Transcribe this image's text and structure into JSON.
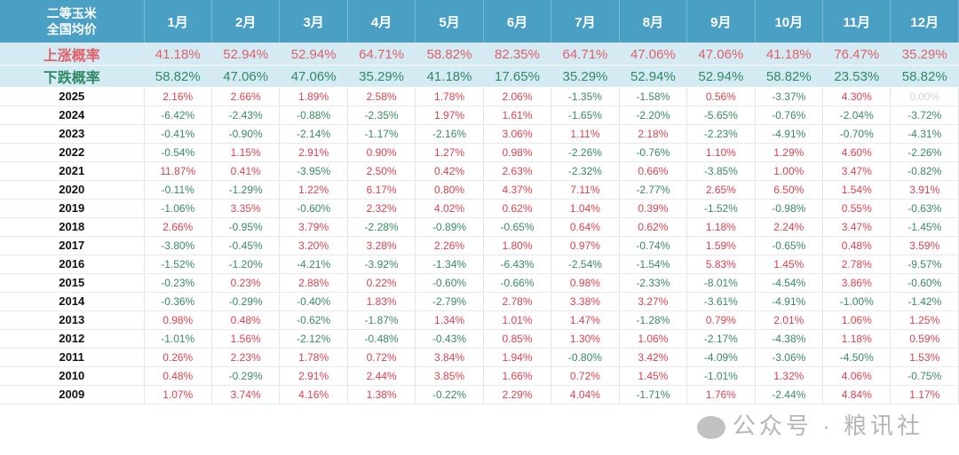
{
  "header": {
    "corner_line1": "二等玉米",
    "corner_line2": "全国均价",
    "months": [
      "1月",
      "2月",
      "3月",
      "4月",
      "5月",
      "6月",
      "7月",
      "8月",
      "9月",
      "10月",
      "11月",
      "12月"
    ]
  },
  "colors": {
    "header_bg": "#4a9fc4",
    "prob_bg": "#d4ebf4",
    "up": "#d9434f",
    "down": "#3a8a62"
  },
  "up_prob": {
    "label": "上涨概率",
    "values": [
      "41.18%",
      "52.94%",
      "52.94%",
      "64.71%",
      "58.82%",
      "82.35%",
      "64.71%",
      "47.06%",
      "47.06%",
      "41.18%",
      "76.47%",
      "35.29%"
    ]
  },
  "down_prob": {
    "label": "下跌概率",
    "values": [
      "58.82%",
      "47.06%",
      "47.06%",
      "35.29%",
      "41.18%",
      "17.65%",
      "35.29%",
      "52.94%",
      "52.94%",
      "58.82%",
      "23.53%",
      "58.82%"
    ]
  },
  "rows": [
    {
      "year": "2025",
      "values": [
        "2.16%",
        "2.66%",
        "1.89%",
        "2.58%",
        "1.78%",
        "2.06%",
        "-1.35%",
        "-1.58%",
        "0.56%",
        "-3.37%",
        "4.30%",
        "0.00%"
      ]
    },
    {
      "year": "2024",
      "values": [
        "-6.42%",
        "-2.43%",
        "-0.88%",
        "-2.35%",
        "1.97%",
        "1.61%",
        "-1.65%",
        "-2.20%",
        "-5.65%",
        "-0.76%",
        "-2.04%",
        "-3.72%"
      ]
    },
    {
      "year": "2023",
      "values": [
        "-0.41%",
        "-0.90%",
        "-2.14%",
        "-1.17%",
        "-2.16%",
        "3.06%",
        "1.11%",
        "2.18%",
        "-2.23%",
        "-4.91%",
        "-0.70%",
        "-4.31%"
      ]
    },
    {
      "year": "2022",
      "values": [
        "-0.54%",
        "1.15%",
        "2.91%",
        "0.90%",
        "1.27%",
        "0.98%",
        "-2.26%",
        "-0.76%",
        "1.10%",
        "1.29%",
        "4.60%",
        "-2.26%"
      ]
    },
    {
      "year": "2021",
      "values": [
        "11.87%",
        "0.41%",
        "-3.95%",
        "2.50%",
        "0.42%",
        "2.63%",
        "-2.32%",
        "0.66%",
        "-3.85%",
        "1.00%",
        "3.47%",
        "-0.82%"
      ]
    },
    {
      "year": "2020",
      "values": [
        "-0.11%",
        "-1.29%",
        "1.22%",
        "6.17%",
        "0.80%",
        "4.37%",
        "7.11%",
        "-2.77%",
        "2.65%",
        "6.50%",
        "1.54%",
        "3.91%"
      ]
    },
    {
      "year": "2019",
      "values": [
        "-1.06%",
        "3.35%",
        "-0.60%",
        "2.32%",
        "4.02%",
        "0.62%",
        "1.04%",
        "0.39%",
        "-1.52%",
        "-0.98%",
        "0.55%",
        "-0.63%"
      ]
    },
    {
      "year": "2018",
      "values": [
        "2.66%",
        "-0.95%",
        "3.79%",
        "-2.28%",
        "-0.89%",
        "-0.65%",
        "0.64%",
        "0.62%",
        "1.18%",
        "2.24%",
        "3.47%",
        "-1.45%"
      ]
    },
    {
      "year": "2017",
      "values": [
        "-3.80%",
        "-0.45%",
        "3.20%",
        "3.28%",
        "2.26%",
        "1.80%",
        "0.97%",
        "-0.74%",
        "1.59%",
        "-0.65%",
        "0.48%",
        "3.59%"
      ]
    },
    {
      "year": "2016",
      "values": [
        "-1.52%",
        "-1.20%",
        "-4.21%",
        "-3.92%",
        "-1.34%",
        "-6.43%",
        "-2.54%",
        "-1.54%",
        "5.83%",
        "1.45%",
        "2.78%",
        "-9.57%"
      ]
    },
    {
      "year": "2015",
      "values": [
        "-0.23%",
        "0.23%",
        "2.88%",
        "0.22%",
        "-0.60%",
        "-0.66%",
        "0.98%",
        "-2.33%",
        "-8.01%",
        "-4.54%",
        "3.86%",
        "-0.60%"
      ]
    },
    {
      "year": "2014",
      "values": [
        "-0.36%",
        "-0.29%",
        "-0.40%",
        "1.83%",
        "-2.79%",
        "2.78%",
        "3.38%",
        "3.27%",
        "-3.61%",
        "-4.91%",
        "-1.00%",
        "-1.42%"
      ]
    },
    {
      "year": "2013",
      "values": [
        "0.98%",
        "0.48%",
        "-0.62%",
        "-1.87%",
        "1.34%",
        "1.01%",
        "1.47%",
        "-1.28%",
        "0.79%",
        "2.01%",
        "1.06%",
        "1.25%"
      ]
    },
    {
      "year": "2012",
      "values": [
        "-1.01%",
        "1.56%",
        "-2.12%",
        "-0.48%",
        "-0.43%",
        "0.85%",
        "1.30%",
        "1.06%",
        "-2.17%",
        "-4.38%",
        "1.18%",
        "0.59%"
      ]
    },
    {
      "year": "2011",
      "values": [
        "0.26%",
        "2.23%",
        "1.78%",
        "0.72%",
        "3.84%",
        "1.94%",
        "-0.80%",
        "3.42%",
        "-4.09%",
        "-3.06%",
        "-4.50%",
        "1.53%"
      ]
    },
    {
      "year": "2010",
      "values": [
        "0.48%",
        "-0.29%",
        "2.91%",
        "2.44%",
        "3.85%",
        "1.66%",
        "0.72%",
        "1.45%",
        "-1.01%",
        "1.32%",
        "4.06%",
        "-0.75%"
      ]
    },
    {
      "year": "2009",
      "values": [
        "1.07%",
        "3.74%",
        "4.16%",
        "1.38%",
        "-0.22%",
        "2.29%",
        "4.04%",
        "-1.71%",
        "1.76%",
        "-2.44%",
        "4.84%",
        "1.17%"
      ]
    }
  ],
  "watermark": "公众号 · 粮讯社"
}
